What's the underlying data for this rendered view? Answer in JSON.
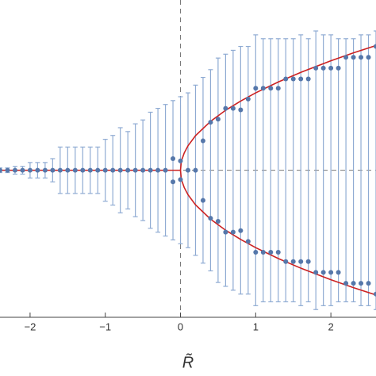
{
  "chart_data": {
    "type": "errorbar-scatter",
    "x_label": "R̃",
    "xlim": [
      -2.4,
      2.6
    ],
    "ylim": [
      -1.9,
      2.2
    ],
    "xticks": [
      {
        "value": -2,
        "label": "−2"
      },
      {
        "value": -1,
        "label": "−1"
      },
      0,
      1,
      2
    ],
    "ref_lines": {
      "x": 0,
      "y": 0
    },
    "x": [
      -2.4,
      -2.3,
      -2.2,
      -2.1,
      -2.0,
      -1.9,
      -1.8,
      -1.7,
      -1.6,
      -1.5,
      -1.4,
      -1.3,
      -1.2,
      -1.1,
      -1.0,
      -0.9,
      -0.8,
      -0.7,
      -0.6,
      -0.5,
      -0.4,
      -0.3,
      -0.2,
      -0.1,
      0.0,
      0.1,
      0.2,
      0.3,
      0.4,
      0.5,
      0.6,
      0.7,
      0.8,
      0.9,
      1.0,
      1.1,
      1.2,
      1.3,
      1.4,
      1.5,
      1.6,
      1.7,
      1.8,
      1.9,
      2.0,
      2.1,
      2.2,
      2.3,
      2.4,
      2.5,
      2.6
    ],
    "series": [
      {
        "color": "#5577aa",
        "values": [
          0,
          0,
          0,
          0,
          0,
          0,
          0,
          0,
          0,
          0,
          0,
          0,
          0,
          0,
          0,
          0,
          0,
          0,
          0,
          0,
          0,
          0,
          0,
          0.15,
          0.12,
          0,
          0,
          0.38,
          0.62,
          0.66,
          0.8,
          0.8,
          0.78,
          0.92,
          1.06,
          1.06,
          1.06,
          1.06,
          1.18,
          1.18,
          1.18,
          1.18,
          1.32,
          1.32,
          1.32,
          1.32,
          1.46,
          1.46,
          1.46,
          1.46,
          1.6
        ]
      },
      {
        "color": "#5577aa",
        "values": [
          null,
          null,
          null,
          null,
          null,
          null,
          null,
          null,
          null,
          null,
          null,
          null,
          null,
          null,
          null,
          null,
          null,
          null,
          null,
          null,
          null,
          null,
          null,
          -0.15,
          -0.12,
          null,
          null,
          -0.39,
          -0.62,
          -0.66,
          -0.8,
          -0.8,
          -0.78,
          -0.92,
          -1.06,
          -1.06,
          -1.06,
          -1.06,
          -1.18,
          -1.18,
          -1.18,
          -1.18,
          -1.32,
          -1.32,
          -1.32,
          -1.32,
          -1.46,
          -1.46,
          -1.46,
          -1.46,
          -1.6
        ]
      }
    ],
    "spread": {
      "color": "#8fabd3",
      "values": [
        0.03,
        0.03,
        0.05,
        0.05,
        0.1,
        0.1,
        0.1,
        0.15,
        0.3,
        0.3,
        0.3,
        0.3,
        0.3,
        0.3,
        0.4,
        0.45,
        0.55,
        0.5,
        0.6,
        0.65,
        0.75,
        0.8,
        0.85,
        0.9,
        0.95,
        1.0,
        1.1,
        1.2,
        1.3,
        1.45,
        1.5,
        1.55,
        1.6,
        1.6,
        1.75,
        1.7,
        1.7,
        1.7,
        1.7,
        1.7,
        1.75,
        1.7,
        1.8,
        1.75,
        1.75,
        1.7,
        1.7,
        1.7,
        1.75,
        1.75,
        1.8
      ]
    },
    "curve": {
      "color": "#cc2222",
      "x": [
        -2.4,
        -1.0,
        0,
        0.01,
        0.02,
        0.05,
        0.1,
        0.2,
        0.4,
        0.6,
        0.8,
        1.0,
        1.3,
        1.6,
        2.0,
        2.3,
        2.6
      ],
      "upper": [
        0,
        0,
        0,
        0.1,
        0.141,
        0.224,
        0.316,
        0.447,
        0.632,
        0.775,
        0.894,
        1,
        1.14,
        1.265,
        1.414,
        1.517,
        1.612
      ],
      "lower": [
        null,
        null,
        0,
        -0.1,
        -0.141,
        -0.224,
        -0.316,
        -0.447,
        -0.632,
        -0.775,
        -0.894,
        -1,
        -1.14,
        -1.265,
        -1.414,
        -1.517,
        -1.612
      ]
    }
  }
}
